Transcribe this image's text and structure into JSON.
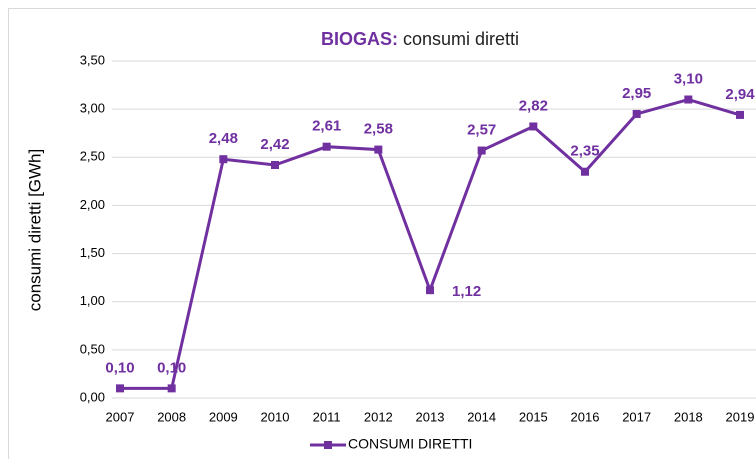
{
  "chart_data": {
    "type": "line",
    "title": {
      "bold": "BIOGAS:",
      "rest": "consumi diretti"
    },
    "y_label": "consumi diretti [GWh]",
    "categories": [
      "2007",
      "2008",
      "2009",
      "2010",
      "2011",
      "2012",
      "2013",
      "2014",
      "2015",
      "2016",
      "2017",
      "2018",
      "2019"
    ],
    "series": [
      {
        "name": "CONSUMI DIRETTI",
        "color": "#7030a0",
        "values": [
          0.1,
          0.1,
          2.48,
          2.42,
          2.61,
          2.58,
          1.12,
          2.57,
          2.82,
          2.35,
          2.95,
          3.1,
          2.94
        ],
        "value_labels": [
          "0,10",
          "0,10",
          "2,48",
          "2,42",
          "2,61",
          "2,58",
          "1,12",
          "2,57",
          "2,82",
          "2,35",
          "2,95",
          "3,10",
          "2,94"
        ]
      }
    ],
    "ylim": [
      0,
      3.5
    ],
    "yticks": [
      {
        "value": 0,
        "label": "0,00"
      },
      {
        "value": 0.5,
        "label": "0,50"
      },
      {
        "value": 1,
        "label": "1,00"
      },
      {
        "value": 1.5,
        "label": "1,50"
      },
      {
        "value": 2,
        "label": "2,00"
      },
      {
        "value": 2.5,
        "label": "2,50"
      },
      {
        "value": 3,
        "label": "3,00"
      },
      {
        "value": 3.5,
        "label": "3,50"
      }
    ],
    "grid": true,
    "legend": "bottom"
  }
}
